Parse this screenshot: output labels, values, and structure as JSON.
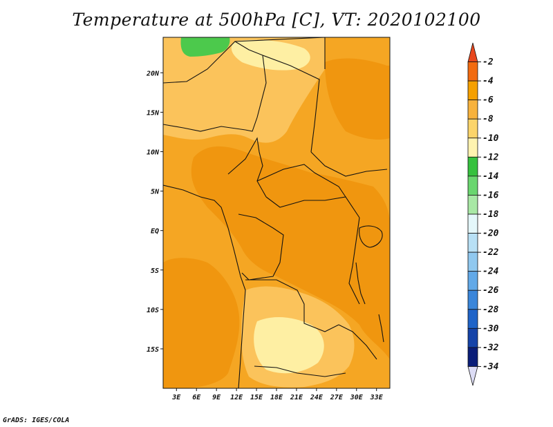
{
  "title": "Temperature at 500hPa [C], VT: 2020102100",
  "footer": "GrADS: IGES/COLA",
  "map": {
    "latitude_labels": [
      "20N",
      "15N",
      "10N",
      "5N",
      "EQ",
      "5S",
      "10S",
      "15S"
    ],
    "longitude_labels": [
      "3E",
      "6E",
      "9E",
      "12E",
      "15E",
      "18E",
      "21E",
      "24E",
      "27E",
      "30E",
      "33E"
    ],
    "lon_range": [
      1,
      35
    ],
    "lat_range": [
      -20,
      24.5
    ],
    "field_colors": {
      "dominant": "#f5a623",
      "warmer": "#f0960f",
      "cooler": "#fbc35b",
      "coolest": "#feefa3",
      "cold_spot": "#4cc94c"
    }
  },
  "colorbar": {
    "labels": [
      "-2",
      "-4",
      "-6",
      "-8",
      "-10",
      "-12",
      "-14",
      "-16",
      "-18",
      "-20",
      "-22",
      "-24",
      "-26",
      "-28",
      "-30",
      "-32",
      "-34"
    ],
    "colors": [
      "#e8471e",
      "#f26b10",
      "#f5a000",
      "#f7b23d",
      "#fbd46b",
      "#fef3b0",
      "#36c13e",
      "#6ad66f",
      "#a8e8a5",
      "#e4f7fa",
      "#b8e0f5",
      "#90c8ef",
      "#62a9e8",
      "#3a86da",
      "#1f64c8",
      "#1543a8",
      "#0a1d78",
      "#dcdcf5"
    ]
  }
}
